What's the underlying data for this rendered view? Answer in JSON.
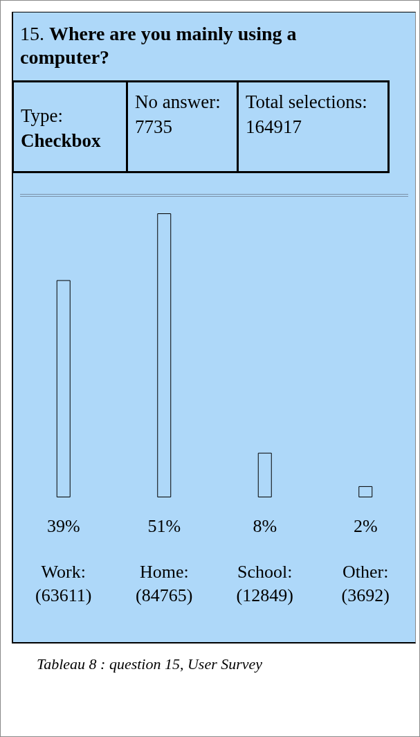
{
  "chart_data": {
    "type": "bar",
    "title": "15. Where are you mainly using a computer?",
    "categories": [
      "Work:\n(63611)",
      "Home:\n(84765)",
      "School:\n(12849)",
      "Other:\n(3692)"
    ],
    "values": [
      39,
      51,
      8,
      2
    ],
    "value_labels": [
      "39%",
      "51%",
      "8%",
      "2%"
    ],
    "color": "#aed8f9",
    "grid": false,
    "annotations": [
      "Type: Checkbox",
      "No answer: 7735",
      "Total selections: 164917",
      "Tableau 8 : question 15, User Survey"
    ]
  }
}
